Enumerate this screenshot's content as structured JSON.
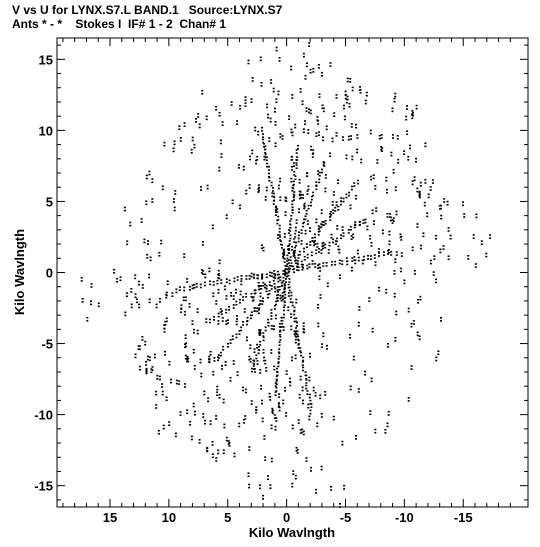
{
  "chart_data": {
    "type": "scatter",
    "title_line1": "V vs U for LYNX.S7.L BAND.1   Source:LYNX.S7",
    "title_line2": "Ants * - *    Stokes I  IF# 1 - 2  Chan# 1",
    "xlabel": "Kilo Wavlngth",
    "ylabel": "Kilo Wavlngth",
    "xlim": [
      19.5,
      -20.5
    ],
    "ylim": [
      -16.5,
      16.5
    ],
    "x_ticks": [
      15,
      10,
      5,
      0,
      -5,
      -10,
      -15
    ],
    "x_tick_labels": [
      "15",
      "10",
      "5",
      "0",
      "-5",
      "-10",
      "-15"
    ],
    "y_ticks": [
      15,
      10,
      5,
      0,
      -5,
      -10,
      -15
    ],
    "y_tick_labels": [
      "15",
      "10",
      "5",
      "0",
      "-5",
      "-10",
      "-15"
    ],
    "grid": false,
    "pattern": "radial uv-coverage tracks",
    "spokes_deg": [
      78,
      96,
      113,
      134,
      152,
      172,
      258,
      276,
      293,
      314,
      332,
      352
    ],
    "spoke_extent_kλ": [
      18.5,
      16.0,
      14.5,
      16.0,
      14.0,
      17.5,
      18.5,
      16.0,
      14.5,
      16.0,
      14.0,
      17.5
    ],
    "point_pairs_offset_kλ": [
      0,
      0.22
    ]
  }
}
